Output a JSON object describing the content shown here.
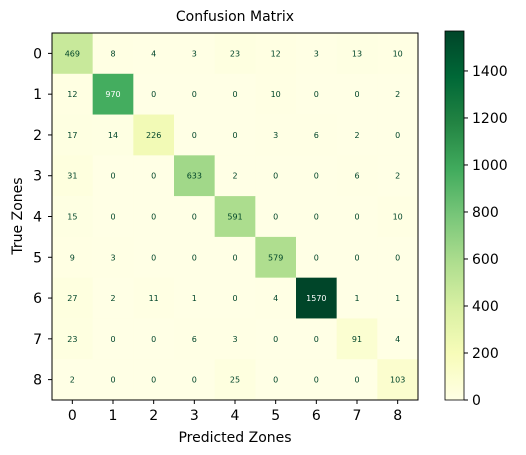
{
  "chart_data": {
    "type": "heatmap",
    "title": "Confusion Matrix",
    "xlabel": "Predicted Zones",
    "ylabel": "True Zones",
    "x_categories": [
      "0",
      "1",
      "2",
      "3",
      "4",
      "5",
      "6",
      "7",
      "8"
    ],
    "y_categories": [
      "0",
      "1",
      "2",
      "3",
      "4",
      "5",
      "6",
      "7",
      "8"
    ],
    "values": [
      [
        469,
        8,
        4,
        3,
        23,
        12,
        3,
        13,
        10
      ],
      [
        12,
        970,
        0,
        0,
        0,
        10,
        0,
        0,
        2
      ],
      [
        17,
        14,
        226,
        0,
        0,
        3,
        6,
        2,
        0
      ],
      [
        31,
        0,
        0,
        633,
        2,
        0,
        0,
        6,
        2
      ],
      [
        15,
        0,
        0,
        0,
        591,
        0,
        0,
        0,
        10
      ],
      [
        9,
        3,
        0,
        0,
        0,
        579,
        0,
        0,
        0
      ],
      [
        27,
        2,
        11,
        1,
        0,
        4,
        1570,
        1,
        1
      ],
      [
        23,
        0,
        0,
        6,
        3,
        0,
        0,
        91,
        4
      ],
      [
        2,
        0,
        0,
        0,
        25,
        0,
        0,
        0,
        103
      ]
    ],
    "colormap": "YlGn",
    "colors": [
      "#ffffe5",
      "#f7fcb9",
      "#d9f0a3",
      "#addd8e",
      "#78c679",
      "#41ab5d",
      "#238443",
      "#006837",
      "#004529"
    ],
    "text_color_dark": "#004529",
    "text_color_light": "#ffffff",
    "colorbar": {
      "range": [
        0,
        1570
      ],
      "ticks": [
        0,
        200,
        400,
        600,
        800,
        1000,
        1200,
        1400
      ]
    }
  }
}
